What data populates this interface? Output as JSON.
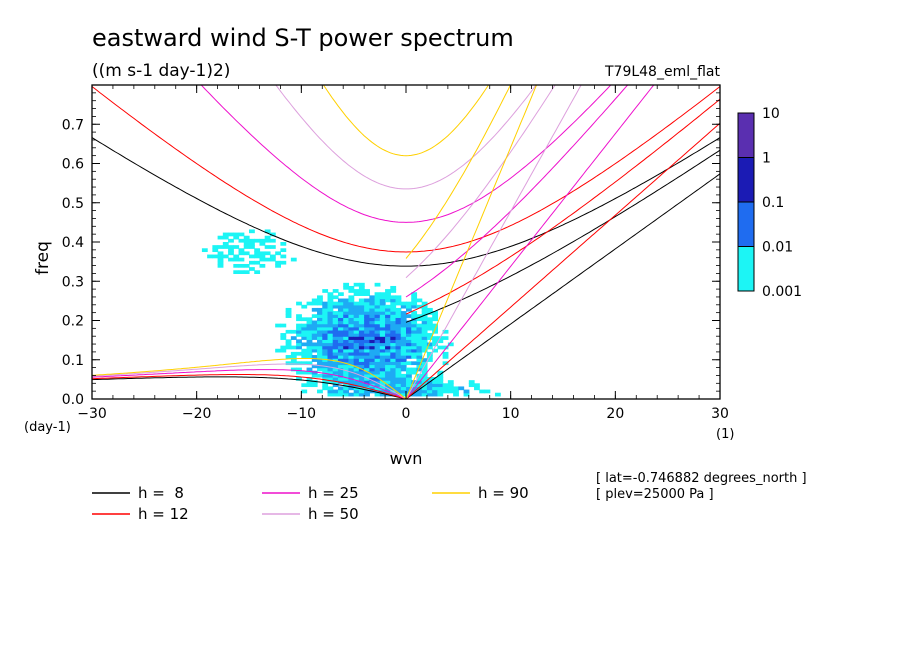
{
  "chart_data": {
    "type": "heatmap",
    "title": "eastward wind S-T power spectrum",
    "subtitle": "((m s-1 day-1)2)",
    "run_label": "T79L48_eml_flat",
    "xlabel": "wvn",
    "ylabel": "freq",
    "x_unit": "(1)",
    "y_unit": "(day-1)",
    "xlim": [
      -30,
      30
    ],
    "ylim": [
      0,
      0.8
    ],
    "x_ticks": [
      "-30",
      "-20",
      "-10",
      "0",
      "10",
      "20",
      "30"
    ],
    "y_ticks": [
      "0.0",
      "0.1",
      "0.2",
      "0.3",
      "0.4",
      "0.5",
      "0.6",
      "0.7"
    ],
    "colorbar": {
      "levels": [
        "10",
        "1",
        "0.1",
        "0.01",
        "0.001"
      ],
      "colors": [
        "#5a2fb0",
        "#1b1bb4",
        "#1f6cf0",
        "#1eaaf4",
        "#1cf5f5"
      ]
    },
    "contour_bins": [
      {
        "level": "0.001-0.01",
        "color": "#1cf5f5",
        "region": {
          "x": [
            -20,
            11
          ],
          "y": [
            0.01,
            0.47
          ],
          "peak_x": -4,
          "peak_y": 0.15
        }
      },
      {
        "level": "0.01-0.1",
        "color": "#1eaaf4",
        "region": {
          "x": [
            -12,
            6
          ],
          "y": [
            0.01,
            0.3
          ]
        }
      },
      {
        "level": "0.1-1",
        "color": "#1f6cf0",
        "region": {
          "x": [
            -8,
            3
          ],
          "y": [
            0.04,
            0.22
          ]
        }
      },
      {
        "level": "1-10",
        "color": "#1b1bb4",
        "region": {
          "x": [
            -6,
            1
          ],
          "y": [
            0.08,
            0.16
          ]
        }
      }
    ],
    "dispersion_curves": [
      {
        "name": "h =  8",
        "color": "#000000"
      },
      {
        "name": "h = 12",
        "color": "#ff0000"
      },
      {
        "name": "h = 25",
        "color": "#ee10cc"
      },
      {
        "name": "h = 50",
        "color": "#dda0dd"
      },
      {
        "name": "h = 90",
        "color": "#ffd000"
      }
    ],
    "grid": false,
    "legend_position": "bottom-left"
  },
  "annotations": {
    "lat": "[ lat=-0.746882 degrees_north ]",
    "plev": "[ plev=25000 Pa ]"
  }
}
